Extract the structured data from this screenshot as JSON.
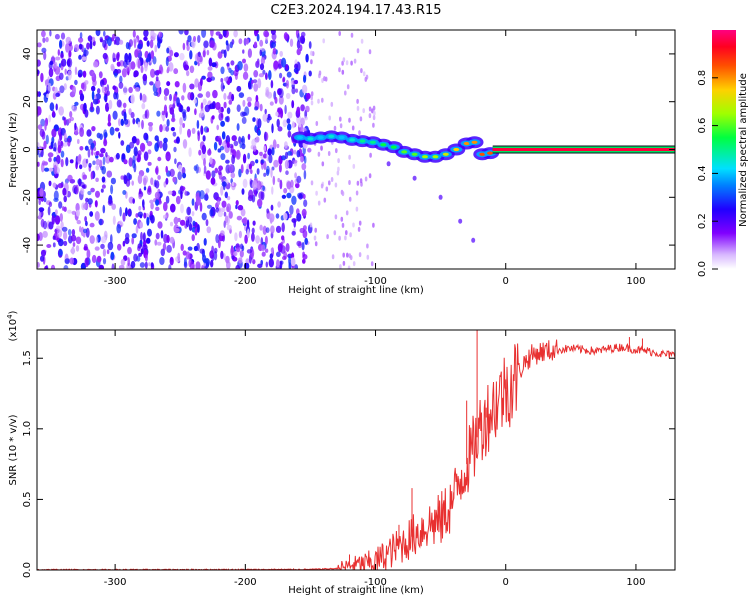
{
  "title": "C2E3.2024.194.17.43.R15",
  "chart_data": [
    {
      "type": "heatmap",
      "xlabel": "Height of straight line (km)",
      "ylabel": "Frequency (Hz)",
      "xlim": [
        -360,
        130
      ],
      "ylim": [
        -50,
        50
      ],
      "xticks": [
        -300,
        -200,
        -100,
        0,
        100
      ],
      "yticks": [
        -40,
        -20,
        0,
        20,
        40
      ],
      "colorbar": {
        "label": "Normalized spectral amplitude",
        "range": [
          0.0,
          1.0
        ],
        "ticks": [
          0.0,
          0.2,
          0.4,
          0.6,
          0.8
        ],
        "colors": [
          "#f0e8ff",
          "#8000ff",
          "#0000ff",
          "#00ffff",
          "#00ff00",
          "#ffff00",
          "#ff8000",
          "#ff0000",
          "#ff0080"
        ]
      },
      "noise_region": {
        "x_range": [
          -360,
          -150
        ],
        "y_range": [
          -50,
          50
        ],
        "amplitude": [
          0.05,
          0.3
        ]
      },
      "signal_track": [
        {
          "x": -158,
          "y": 5.0,
          "a": 0.4
        },
        {
          "x": -150,
          "y": 4.5,
          "a": 0.45
        },
        {
          "x": -142,
          "y": 5.0,
          "a": 0.4
        },
        {
          "x": -134,
          "y": 5.5,
          "a": 0.45
        },
        {
          "x": -126,
          "y": 5.0,
          "a": 0.4
        },
        {
          "x": -118,
          "y": 4.0,
          "a": 0.45
        },
        {
          "x": -110,
          "y": 3.5,
          "a": 0.5
        },
        {
          "x": -102,
          "y": 3.0,
          "a": 0.5
        },
        {
          "x": -94,
          "y": 2.0,
          "a": 0.55
        },
        {
          "x": -86,
          "y": 1.0,
          "a": 0.55
        },
        {
          "x": -78,
          "y": -1.0,
          "a": 0.6
        },
        {
          "x": -70,
          "y": -2.0,
          "a": 0.6
        },
        {
          "x": -62,
          "y": -3.0,
          "a": 0.65
        },
        {
          "x": -54,
          "y": -3.0,
          "a": 0.65
        },
        {
          "x": -46,
          "y": -2.0,
          "a": 0.7
        },
        {
          "x": -38,
          "y": 0.0,
          "a": 0.75
        },
        {
          "x": -30,
          "y": 2.5,
          "a": 0.8
        },
        {
          "x": -24,
          "y": 3.0,
          "a": 0.8
        },
        {
          "x": -18,
          "y": -2.0,
          "a": 0.85
        },
        {
          "x": -12,
          "y": -1.5,
          "a": 0.85
        }
      ],
      "weak_branch": [
        {
          "x": -90,
          "y": -6
        },
        {
          "x": -70,
          "y": -12
        },
        {
          "x": -50,
          "y": -20
        },
        {
          "x": -35,
          "y": -30
        },
        {
          "x": -25,
          "y": -38
        }
      ],
      "carrier_line": {
        "x_range": [
          -10,
          130
        ],
        "y": 0,
        "a": 0.95
      }
    },
    {
      "type": "line",
      "xlabel": "Height of straight line (km)",
      "ylabel": "SNR (10 * v/v)",
      "y_multiplier_label": "(x10^4)",
      "xlim": [
        -360,
        130
      ],
      "ylim": [
        0,
        1.7
      ],
      "xticks": [
        -300,
        -200,
        -100,
        0,
        100
      ],
      "yticks": [
        0.0,
        0.5,
        1.0,
        1.5
      ],
      "color": "#e83030",
      "series": [
        {
          "x": [
            -360,
            -300,
            -200,
            -150,
            -130,
            -120,
            -110,
            -100,
            -90,
            -80,
            -70,
            -60,
            -50,
            -40,
            -35,
            -30,
            -25,
            -20,
            -15,
            -10,
            -5,
            0,
            5,
            10,
            15,
            20,
            25,
            30,
            40,
            50,
            60,
            70,
            80,
            90,
            100,
            110,
            120,
            130
          ],
          "values": [
            0.002,
            0.002,
            0.003,
            0.004,
            0.01,
            0.03,
            0.04,
            0.06,
            0.12,
            0.18,
            0.25,
            0.32,
            0.35,
            0.5,
            0.65,
            0.75,
            0.85,
            1.0,
            1.08,
            1.15,
            1.22,
            1.28,
            1.33,
            1.4,
            1.48,
            1.52,
            1.54,
            1.55,
            1.56,
            1.57,
            1.56,
            1.55,
            1.57,
            1.58,
            1.56,
            1.55,
            1.53,
            1.52
          ]
        }
      ],
      "spikes": [
        {
          "x": -120,
          "y": 0.11
        },
        {
          "x": -82,
          "y": 0.32
        },
        {
          "x": -72,
          "y": 0.58
        },
        {
          "x": -55,
          "y": 0.35
        },
        {
          "x": -40,
          "y": 0.55
        },
        {
          "x": -30,
          "y": 1.2
        },
        {
          "x": -22,
          "y": 1.7
        },
        {
          "x": -15,
          "y": 1.15
        },
        {
          "x": 0,
          "y": 1.35
        },
        {
          "x": 95,
          "y": 1.65
        },
        {
          "x": 105,
          "y": 1.64
        }
      ]
    }
  ]
}
